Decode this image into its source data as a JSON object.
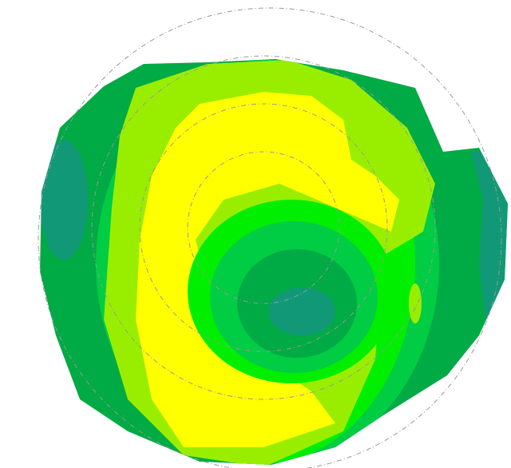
{
  "chart_data": {
    "type": "contour",
    "colors": [
      "#119977",
      "#00aa44",
      "#00cc44",
      "#00ee00",
      "#99ee00",
      "#ffff00"
    ]
  }
}
